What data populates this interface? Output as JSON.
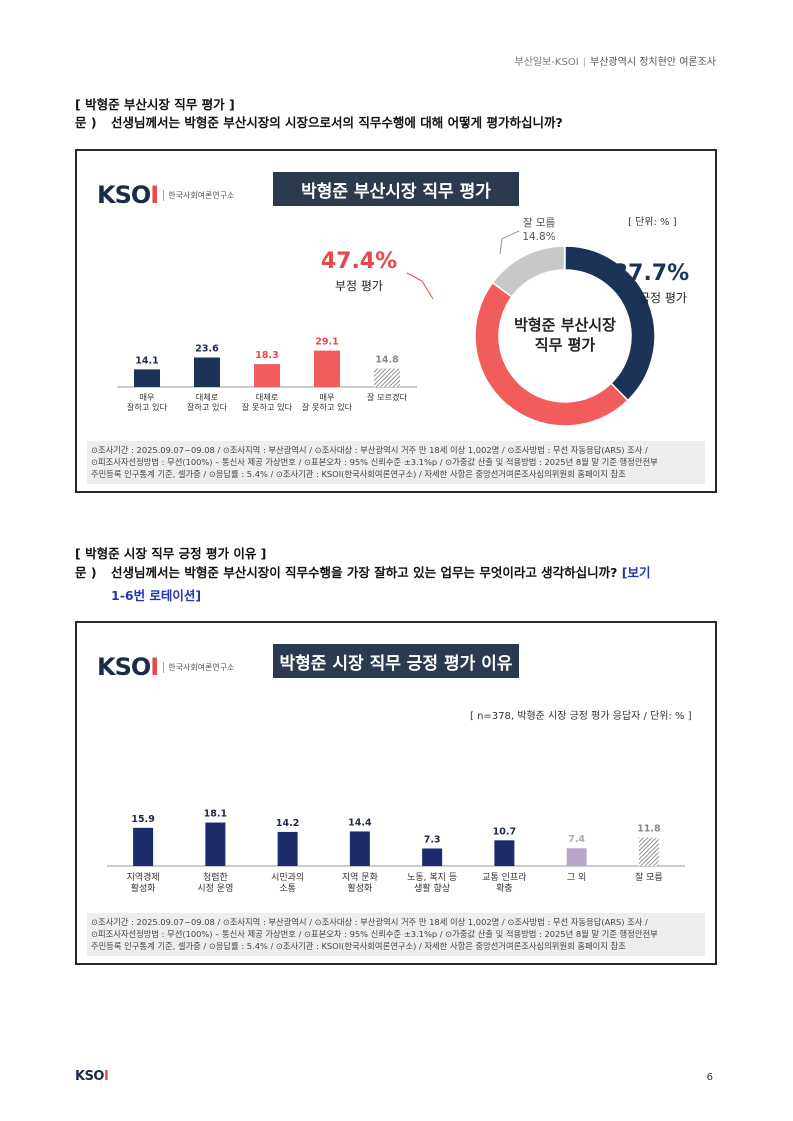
{
  "header": {
    "publisher": "부산일보-KSOI",
    "report": "부산광역시 정치현안 여론조사"
  },
  "section1": {
    "title": "[ 박형준 부산시장 직무 평가 ]",
    "q_label": "문 )",
    "question": "선생님께서는 박형준 부산시장의 시장으로서의 직무수행에 대해 어떻게 평가하십니까?"
  },
  "section2": {
    "title": "[ 박형준 시장 직무 긍정 평가 이유 ]",
    "q_label": "문 )",
    "question": "선생님께서는 박형준 부산시장이 직무수행을 가장 잘하고 있는 업무는 무엇이라고 생각하십니까?",
    "rotation_a": "[보기",
    "rotation_b": "1-6번 로테이션]"
  },
  "logo": {
    "brand": "KSOI",
    "org": "한국사회여론연구소"
  },
  "notes": {
    "line1": "⊙조사기간 : 2025.09.07~09.08 / ⊙조사지역 : 부산광역시 / ⊙조사대상 : 부산광역시 거주 만 18세 이상 1,002명 / ⊙조사방법 : 무선 자동응답(ARS) 조사 /",
    "line2": "⊙피조사자선정방법 : 무선(100%) – 통신사 제공 가상번호 / ⊙표본오차 : 95% 신뢰수준 ±3.1%p / ⊙가중값 산출 및 적용방법 : 2025년 8월 말 기준 행정안전부",
    "line3": "주민등록 인구통계 기준, 셀가중 / ⊙응답률 : 5.4% / ⊙조사기관 : KSOI(한국사회여론연구소) / 자세한 사항은 중앙선거여론조사심의위원회 홈페이지 참조"
  },
  "footer": {
    "page": "6"
  },
  "chart_data": [
    {
      "type": "bar",
      "title": "박형준 부산시장 직무 평가",
      "unit": "[ 단위: % ]",
      "categories": [
        "매우\n잘하고 있다",
        "대체로\n잘하고 있다",
        "대체로\n잘 못하고 있다",
        "매우\n잘 못하고 있다",
        "잘 모르겠다"
      ],
      "values": [
        14.1,
        23.6,
        18.3,
        29.1,
        14.8
      ],
      "colors": [
        "#1c3358",
        "#1c3358",
        "#f25c5c",
        "#f25c5c",
        "hatch"
      ],
      "label_colors": [
        "#1c2b4a",
        "#1c2b4a",
        "#e8484a",
        "#e8484a",
        "#888888"
      ],
      "donut": {
        "type": "pie",
        "center_label": [
          "박형준 부산시장",
          "직무 평가"
        ],
        "slices": [
          {
            "name": "긍정 평가",
            "value": 37.7,
            "label": "37.7%",
            "color": "#1c3358"
          },
          {
            "name": "부정 평가",
            "value": 47.4,
            "label": "47.4%",
            "color": "#f25c5c"
          },
          {
            "name": "잘 모름",
            "value": 14.8,
            "label": "14.8%",
            "color": "#c8c8c8"
          }
        ]
      }
    },
    {
      "type": "bar",
      "title": "박형준 시장 직무 긍정 평가 이유",
      "unit": "[ n=378, 박형준 시장 긍정 평가 응답자 / 단위: % ]",
      "categories": [
        "지역경제\n활성화",
        "청렴한\n시정 운영",
        "시민과의\n소통",
        "지역 문화\n활성화",
        "노동, 복지 등\n생활 향상",
        "교통 인프라\n확충",
        "그 외",
        "잘 모름"
      ],
      "values": [
        15.9,
        18.1,
        14.2,
        14.4,
        7.3,
        10.7,
        7.4,
        11.8
      ],
      "colors": [
        "#1c2c6b",
        "#1c2c6b",
        "#1c2c6b",
        "#1c2c6b",
        "#1c2c6b",
        "#1c2c6b",
        "#b9a6c9",
        "hatch"
      ],
      "label_colors": [
        "#1c2b4a",
        "#1c2b4a",
        "#1c2b4a",
        "#1c2b4a",
        "#1c2b4a",
        "#1c2b4a",
        "#aaaaaa",
        "#888888"
      ]
    }
  ]
}
